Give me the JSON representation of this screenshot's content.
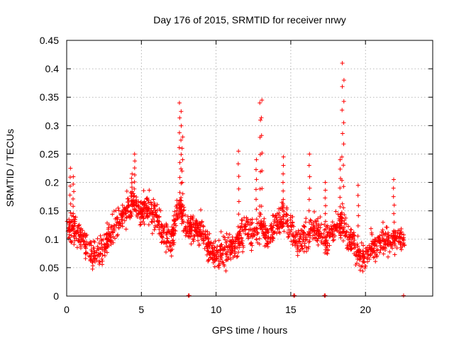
{
  "chart_data": {
    "type": "scatter",
    "title": "Day 176 of 2015, SRMTID for receiver nrwy",
    "xlabel": "GPS time / hours",
    "ylabel": "SRMTID / TECUs",
    "xlim": [
      0,
      24.5
    ],
    "ylim": [
      0,
      0.45
    ],
    "xticks": [
      0,
      5,
      10,
      15,
      20
    ],
    "xtick_labels": [
      "0",
      "5",
      "10",
      "15",
      "20"
    ],
    "yticks": [
      0,
      0.05,
      0.1,
      0.15,
      0.2,
      0.25,
      0.3,
      0.35,
      0.4,
      0.45
    ],
    "ytick_labels": [
      "0",
      "0.05",
      "0.1",
      "0.15",
      "0.2",
      "0.25",
      "0.3",
      "0.35",
      "0.4",
      "0.45"
    ],
    "grid": true,
    "marker": "+",
    "series": [
      {
        "name": "SRMTID",
        "color": "#ff0000",
        "profile_x": [
          0,
          0.5,
          1,
          1.5,
          2,
          2.5,
          3,
          3.5,
          4,
          4.5,
          5,
          5.5,
          6,
          6.5,
          7,
          7.5,
          8,
          8.5,
          9,
          9.5,
          10,
          10.5,
          11,
          11.5,
          12,
          12.5,
          13,
          13.5,
          14,
          14.5,
          15,
          15.5,
          16,
          16.5,
          17,
          17.5,
          18,
          18.5,
          19,
          19.5,
          20,
          20.5,
          21,
          21.5,
          22,
          22.5
        ],
        "profile_y": [
          0.11,
          0.12,
          0.1,
          0.08,
          0.075,
          0.085,
          0.11,
          0.13,
          0.15,
          0.165,
          0.155,
          0.15,
          0.14,
          0.11,
          0.1,
          0.16,
          0.12,
          0.115,
          0.12,
          0.085,
          0.075,
          0.08,
          0.085,
          0.1,
          0.12,
          0.11,
          0.13,
          0.1,
          0.13,
          0.14,
          0.12,
          0.09,
          0.1,
          0.12,
          0.11,
          0.1,
          0.13,
          0.12,
          0.1,
          0.07,
          0.065,
          0.085,
          0.095,
          0.1,
          0.1,
          0.1
        ],
        "peaks_x": [
          0.25,
          0.45,
          4.35,
          4.55,
          7.55,
          7.65,
          7.75,
          11.5,
          12.7,
          12.95,
          13.05,
          14.5,
          16.25,
          17.3,
          18.3,
          18.45,
          18.55,
          19.5,
          21.9
        ],
        "peaks_y": [
          0.225,
          0.21,
          0.215,
          0.25,
          0.34,
          0.325,
          0.28,
          0.255,
          0.24,
          0.34,
          0.345,
          0.245,
          0.25,
          0.2,
          0.24,
          0.41,
          0.38,
          0.195,
          0.205
        ],
        "zero_points_x": [
          8.15,
          8.2,
          15.2,
          15.25,
          17.25,
          17.3,
          22.55
        ]
      }
    ]
  }
}
